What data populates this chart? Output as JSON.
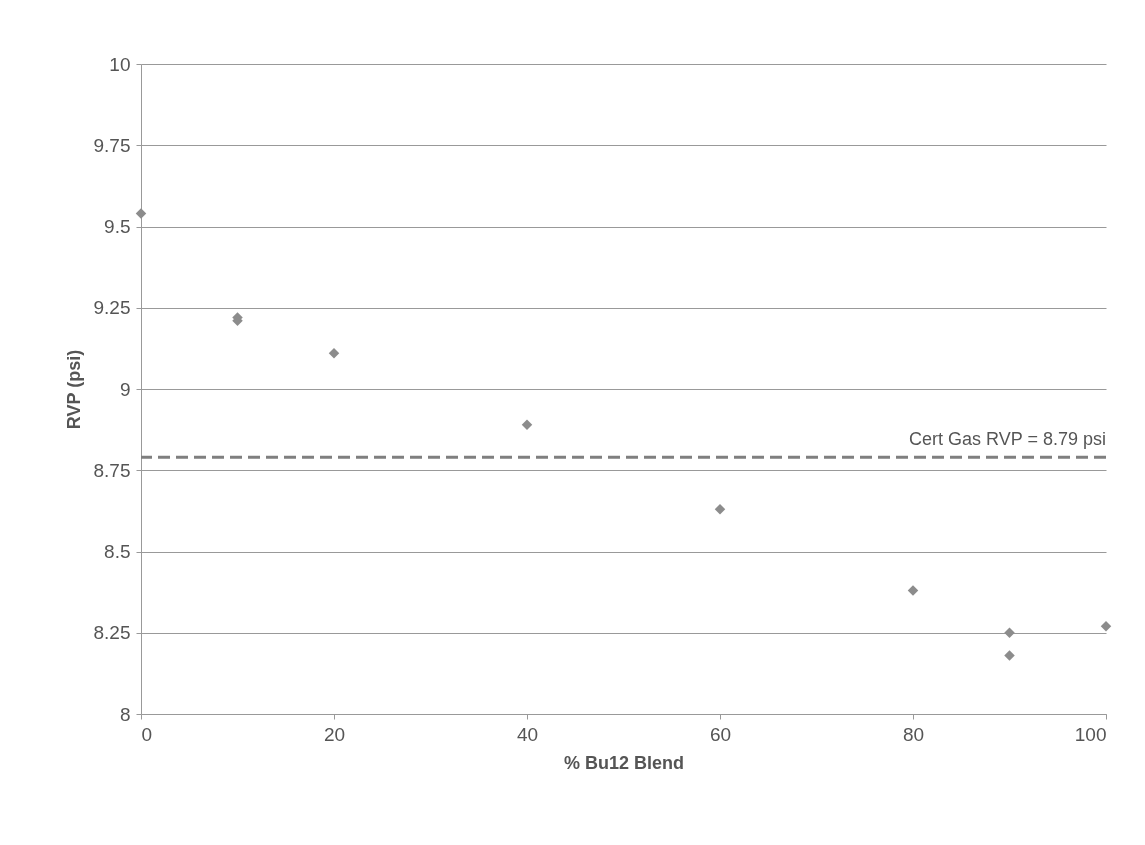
{
  "chart_data": {
    "type": "scatter",
    "xlabel": "% Bu12 Blend",
    "ylabel": "RVP (psi)",
    "x": [
      0,
      10,
      10,
      20,
      40,
      60,
      80,
      90,
      90,
      100
    ],
    "series": [
      {
        "color": "#8c8c8c",
        "values": [
          9.54,
          9.22,
          9.21,
          9.11,
          8.89,
          8.63,
          8.38,
          8.25,
          8.18,
          8.27
        ]
      }
    ],
    "xlim": [
      0,
      100
    ],
    "xticks": [
      0,
      20,
      40,
      60,
      80,
      100
    ],
    "ylim": [
      8,
      10
    ],
    "yticks": [
      8,
      8.25,
      8.5,
      8.75,
      9,
      9.25,
      9.5,
      9.75,
      10
    ],
    "ref_lines": [
      {
        "axis": "y",
        "value": 8.79,
        "label": "Cert Gas RVP = 8.79 psi",
        "color": "#7f7f7f",
        "line_style": "dashed"
      }
    ],
    "grid": "y",
    "marker": "diamond"
  }
}
